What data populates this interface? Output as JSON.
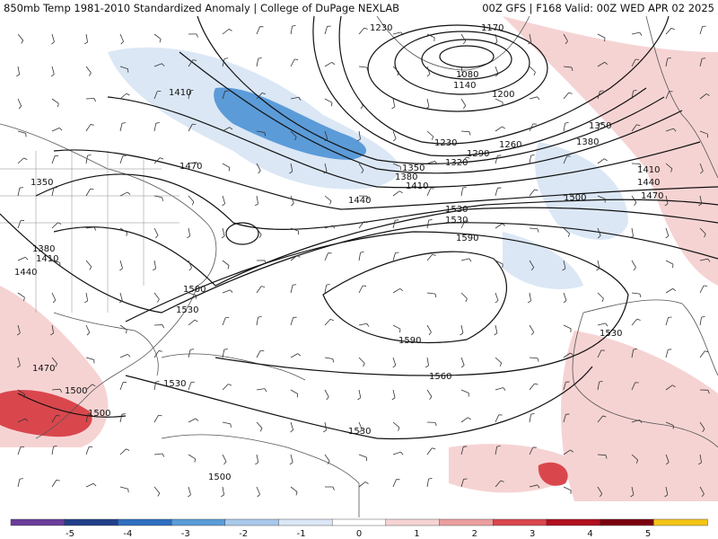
{
  "header": {
    "left_title": "850mb Temp 1981-2010 Standardized Anomaly | College of DuPage NEXLAB",
    "right_title": "00Z GFS | F168 Valid: 00Z WED APR 02 2025"
  },
  "map": {
    "field": "850mb Temp Standardized Anomaly",
    "contour_labels": [
      "1230",
      "1170",
      "1080",
      "1140",
      "1200",
      "1350",
      "1380",
      "1410",
      "1440",
      "1470",
      "1500",
      "1530",
      "1560",
      "1590",
      "1320",
      "1290",
      "1260",
      "1230",
      "1350",
      "1380",
      "1410",
      "1440",
      "1410",
      "1470",
      "1350",
      "1380",
      "1410",
      "1440",
      "1500",
      "1530",
      "1590",
      "1560",
      "1530",
      "1530",
      "1470",
      "1500",
      "1500",
      "1500",
      "1530"
    ]
  },
  "colorbar": {
    "ticks": [
      "-5",
      "-4",
      "-3",
      "-2",
      "-1",
      "0",
      "1",
      "2",
      "3",
      "4",
      "5"
    ],
    "colors": [
      "#6a3d9a",
      "#22408a",
      "#2e6fc0",
      "#5b9bd8",
      "#a9c8ea",
      "#dbe7f5",
      "#ffffff",
      "#f6d3d3",
      "#ec9f9f",
      "#d9474d",
      "#b01020",
      "#7a0010",
      "#f5c518"
    ]
  }
}
